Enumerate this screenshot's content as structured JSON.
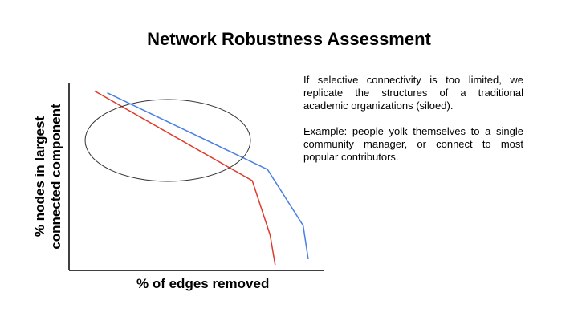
{
  "title": "Network Robustness Assessment",
  "paragraphs": [
    "If selective connectivity is too limited, we replicate the structures of a traditional academic organizations (siloed).",
    "Example: people yolk themselves to a single community manager, or connect to most popular contributors."
  ],
  "chart_data": {
    "type": "line",
    "xlabel": "% of edges removed",
    "ylabel_lines": [
      "% nodes in largest",
      "connected component"
    ],
    "xlim": [
      0,
      100
    ],
    "ylim": [
      0,
      100
    ],
    "grid": false,
    "legend": "none",
    "series": [
      {
        "color": "#4a7fe6",
        "points": [
          [
            15,
            95
          ],
          [
            78,
            54
          ],
          [
            92,
            24
          ],
          [
            94,
            6
          ]
        ]
      },
      {
        "color": "#e03a2a",
        "points": [
          [
            10,
            96
          ],
          [
            72,
            48
          ],
          [
            79,
            19
          ],
          [
            81,
            3
          ]
        ]
      }
    ],
    "annotation": {
      "shape": "ellipse",
      "color": "#333333"
    }
  }
}
